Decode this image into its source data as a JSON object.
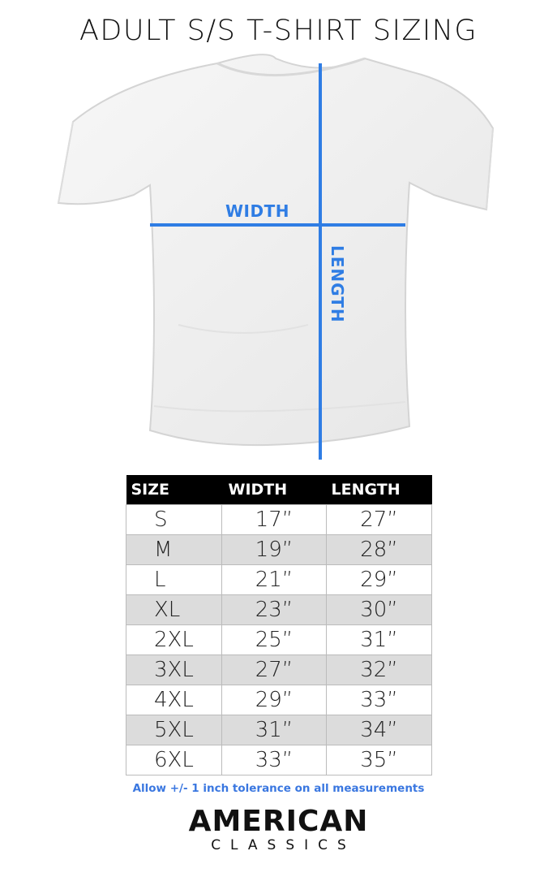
{
  "title": "ADULT S/S T-SHIRT SIZING",
  "diagram": {
    "width_label": "WIDTH",
    "length_label": "LENGTH",
    "line_color": "#2f7de4"
  },
  "table": {
    "headers": [
      "SIZE",
      "WIDTH",
      "LENGTH"
    ],
    "rows": [
      [
        "S",
        "17”",
        "27”"
      ],
      [
        "M",
        "19”",
        "28”"
      ],
      [
        "L",
        "21”",
        "29”"
      ],
      [
        "XL",
        "23”",
        "30”"
      ],
      [
        "2XL",
        "25”",
        "31”"
      ],
      [
        "3XL",
        "27”",
        "32”"
      ],
      [
        "4XL",
        "29”",
        "33”"
      ],
      [
        "5XL",
        "31”",
        "34”"
      ],
      [
        "6XL",
        "33”",
        "35”"
      ]
    ]
  },
  "note": "Allow +/- 1 inch tolerance on all measurements",
  "logo": {
    "line1": "AMERICAN",
    "line2": "CLASSICS"
  }
}
